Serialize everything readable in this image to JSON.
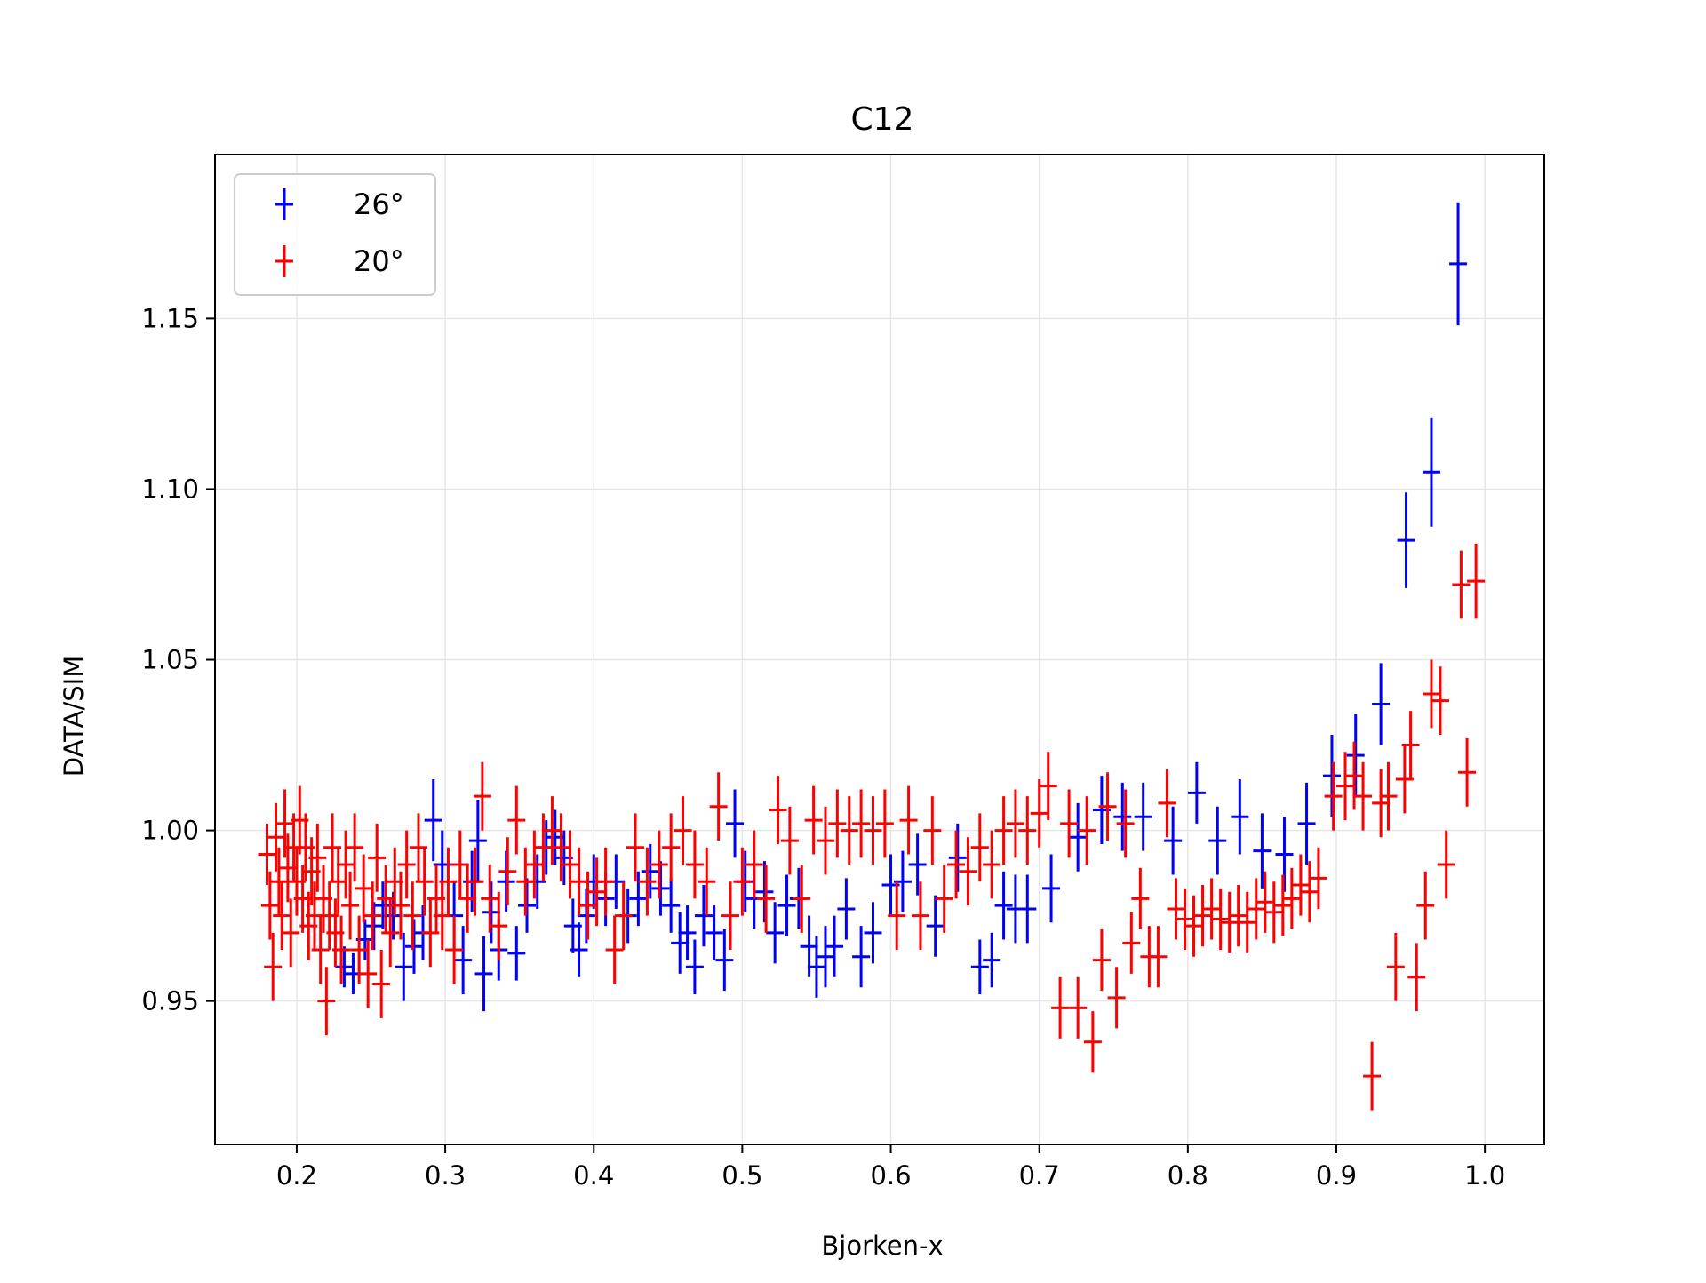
{
  "chart_data": {
    "type": "scatter",
    "title": "C12",
    "xlabel": "Bjorken-x",
    "ylabel": "DATA/SIM",
    "xlim": [
      0.145,
      1.04
    ],
    "ylim": [
      0.908,
      1.198
    ],
    "xticks": [
      0.2,
      0.3,
      0.4,
      0.5,
      0.6,
      0.7,
      0.8,
      0.9,
      1.0
    ],
    "xtick_labels": [
      "0.2",
      "0.3",
      "0.4",
      "0.5",
      "0.6",
      "0.7",
      "0.8",
      "0.9",
      "1.0"
    ],
    "yticks": [
      0.95,
      1.0,
      1.05,
      1.1,
      1.15
    ],
    "ytick_labels": [
      "0.95",
      "1.00",
      "1.05",
      "1.10",
      "1.15"
    ],
    "grid": true,
    "legend_position": "top-left",
    "series": [
      {
        "name": "26°",
        "color": "#0000ff",
        "points": [
          [
            0.232,
            0.96,
            0.006
          ],
          [
            0.238,
            0.958,
            0.006
          ],
          [
            0.246,
            0.968,
            0.006
          ],
          [
            0.252,
            0.972,
            0.007
          ],
          [
            0.258,
            0.978,
            0.007
          ],
          [
            0.265,
            0.975,
            0.007
          ],
          [
            0.272,
            0.96,
            0.01
          ],
          [
            0.279,
            0.966,
            0.008
          ],
          [
            0.285,
            0.97,
            0.008
          ],
          [
            0.292,
            1.003,
            0.012
          ],
          [
            0.298,
            0.99,
            0.01
          ],
          [
            0.306,
            0.975,
            0.01
          ],
          [
            0.312,
            0.962,
            0.01
          ],
          [
            0.318,
            0.985,
            0.009
          ],
          [
            0.322,
            0.997,
            0.012
          ],
          [
            0.326,
            0.958,
            0.011
          ],
          [
            0.331,
            0.976,
            0.009
          ],
          [
            0.336,
            0.965,
            0.009
          ],
          [
            0.341,
            0.985,
            0.009
          ],
          [
            0.348,
            0.964,
            0.008
          ],
          [
            0.355,
            0.978,
            0.008
          ],
          [
            0.362,
            0.985,
            0.008
          ],
          [
            0.368,
            0.995,
            0.008
          ],
          [
            0.374,
            0.998,
            0.008
          ],
          [
            0.38,
            0.992,
            0.008
          ],
          [
            0.386,
            0.972,
            0.008
          ],
          [
            0.39,
            0.965,
            0.008
          ],
          [
            0.395,
            0.975,
            0.008
          ],
          [
            0.4,
            0.985,
            0.008
          ],
          [
            0.408,
            0.98,
            0.008
          ],
          [
            0.415,
            0.985,
            0.008
          ],
          [
            0.423,
            0.975,
            0.008
          ],
          [
            0.43,
            0.98,
            0.008
          ],
          [
            0.438,
            0.988,
            0.008
          ],
          [
            0.445,
            0.983,
            0.008
          ],
          [
            0.452,
            0.978,
            0.008
          ],
          [
            0.458,
            0.967,
            0.009
          ],
          [
            0.463,
            0.97,
            0.008
          ],
          [
            0.468,
            0.96,
            0.008
          ],
          [
            0.474,
            0.975,
            0.009
          ],
          [
            0.481,
            0.97,
            0.008
          ],
          [
            0.488,
            0.962,
            0.009
          ],
          [
            0.495,
            1.002,
            0.01
          ],
          [
            0.502,
            0.985,
            0.009
          ],
          [
            0.508,
            0.98,
            0.009
          ],
          [
            0.515,
            0.982,
            0.009
          ],
          [
            0.522,
            0.97,
            0.009
          ],
          [
            0.53,
            0.978,
            0.009
          ],
          [
            0.538,
            0.98,
            0.009
          ],
          [
            0.545,
            0.966,
            0.009
          ],
          [
            0.55,
            0.96,
            0.009
          ],
          [
            0.556,
            0.963,
            0.009
          ],
          [
            0.562,
            0.966,
            0.009
          ],
          [
            0.57,
            0.977,
            0.009
          ],
          [
            0.58,
            0.963,
            0.009
          ],
          [
            0.588,
            0.97,
            0.009
          ],
          [
            0.6,
            0.984,
            0.009
          ],
          [
            0.608,
            0.985,
            0.009
          ],
          [
            0.618,
            0.99,
            0.009
          ],
          [
            0.63,
            0.972,
            0.009
          ],
          [
            0.645,
            0.992,
            0.01
          ],
          [
            0.66,
            0.96,
            0.008
          ],
          [
            0.668,
            0.962,
            0.008
          ],
          [
            0.676,
            0.978,
            0.01
          ],
          [
            0.684,
            0.977,
            0.01
          ],
          [
            0.692,
            0.977,
            0.01
          ],
          [
            0.708,
            0.983,
            0.01
          ],
          [
            0.726,
            0.998,
            0.01
          ],
          [
            0.742,
            1.006,
            0.01
          ],
          [
            0.756,
            1.004,
            0.01
          ],
          [
            0.77,
            1.004,
            0.01
          ],
          [
            0.79,
            0.997,
            0.01
          ],
          [
            0.806,
            1.011,
            0.009
          ],
          [
            0.82,
            0.997,
            0.01
          ],
          [
            0.835,
            1.004,
            0.011
          ],
          [
            0.85,
            0.994,
            0.011
          ],
          [
            0.865,
            0.993,
            0.011
          ],
          [
            0.88,
            1.002,
            0.012
          ],
          [
            0.897,
            1.016,
            0.012
          ],
          [
            0.913,
            1.022,
            0.012
          ],
          [
            0.93,
            1.037,
            0.012
          ],
          [
            0.947,
            1.085,
            0.014
          ],
          [
            0.964,
            1.105,
            0.016
          ],
          [
            0.982,
            1.166,
            0.018
          ]
        ]
      },
      {
        "name": "20°",
        "color": "#ff0000",
        "points": [
          [
            0.18,
            0.993,
            0.009
          ],
          [
            0.182,
            0.978,
            0.01
          ],
          [
            0.184,
            0.96,
            0.01
          ],
          [
            0.186,
            0.998,
            0.01
          ],
          [
            0.188,
            0.985,
            0.01
          ],
          [
            0.19,
            0.975,
            0.01
          ],
          [
            0.192,
            1.002,
            0.01
          ],
          [
            0.194,
            0.989,
            0.01
          ],
          [
            0.196,
            0.97,
            0.01
          ],
          [
            0.198,
            0.995,
            0.01
          ],
          [
            0.2,
            0.985,
            0.01
          ],
          [
            0.202,
            1.003,
            0.01
          ],
          [
            0.204,
            0.98,
            0.01
          ],
          [
            0.206,
            0.995,
            0.01
          ],
          [
            0.208,
            0.972,
            0.01
          ],
          [
            0.21,
            0.988,
            0.01
          ],
          [
            0.212,
            0.975,
            0.01
          ],
          [
            0.214,
            0.992,
            0.01
          ],
          [
            0.216,
            0.965,
            0.01
          ],
          [
            0.218,
            0.98,
            0.01
          ],
          [
            0.22,
            0.95,
            0.01
          ],
          [
            0.222,
            0.975,
            0.01
          ],
          [
            0.224,
            0.995,
            0.01
          ],
          [
            0.226,
            0.97,
            0.01
          ],
          [
            0.228,
            0.985,
            0.01
          ],
          [
            0.23,
            0.965,
            0.01
          ],
          [
            0.233,
            0.99,
            0.01
          ],
          [
            0.236,
            0.978,
            0.01
          ],
          [
            0.239,
            0.995,
            0.01
          ],
          [
            0.242,
            0.965,
            0.01
          ],
          [
            0.245,
            0.983,
            0.01
          ],
          [
            0.248,
            0.958,
            0.01
          ],
          [
            0.251,
            0.975,
            0.01
          ],
          [
            0.254,
            0.992,
            0.01
          ],
          [
            0.257,
            0.955,
            0.01
          ],
          [
            0.26,
            0.98,
            0.01
          ],
          [
            0.263,
            0.97,
            0.01
          ],
          [
            0.266,
            0.985,
            0.01
          ],
          [
            0.27,
            0.978,
            0.01
          ],
          [
            0.274,
            0.99,
            0.01
          ],
          [
            0.278,
            0.975,
            0.01
          ],
          [
            0.282,
            0.995,
            0.01
          ],
          [
            0.286,
            0.985,
            0.01
          ],
          [
            0.29,
            0.97,
            0.01
          ],
          [
            0.294,
            0.98,
            0.01
          ],
          [
            0.298,
            0.975,
            0.01
          ],
          [
            0.302,
            0.985,
            0.01
          ],
          [
            0.306,
            0.965,
            0.01
          ],
          [
            0.31,
            0.99,
            0.01
          ],
          [
            0.315,
            0.98,
            0.01
          ],
          [
            0.32,
            0.985,
            0.01
          ],
          [
            0.325,
            1.01,
            0.01
          ],
          [
            0.33,
            0.98,
            0.01
          ],
          [
            0.336,
            0.972,
            0.01
          ],
          [
            0.342,
            0.988,
            0.01
          ],
          [
            0.348,
            1.003,
            0.01
          ],
          [
            0.354,
            0.985,
            0.01
          ],
          [
            0.36,
            0.99,
            0.01
          ],
          [
            0.366,
            0.995,
            0.01
          ],
          [
            0.372,
            1.0,
            0.01
          ],
          [
            0.378,
            0.995,
            0.01
          ],
          [
            0.384,
            0.99,
            0.01
          ],
          [
            0.39,
            0.985,
            0.01
          ],
          [
            0.396,
            0.978,
            0.01
          ],
          [
            0.402,
            0.982,
            0.01
          ],
          [
            0.408,
            0.985,
            0.01
          ],
          [
            0.414,
            0.965,
            0.01
          ],
          [
            0.42,
            0.975,
            0.01
          ],
          [
            0.428,
            0.995,
            0.01
          ],
          [
            0.436,
            0.985,
            0.01
          ],
          [
            0.444,
            0.99,
            0.01
          ],
          [
            0.452,
            0.995,
            0.01
          ],
          [
            0.46,
            1.0,
            0.01
          ],
          [
            0.468,
            0.99,
            0.01
          ],
          [
            0.476,
            0.985,
            0.01
          ],
          [
            0.484,
            1.007,
            0.01
          ],
          [
            0.492,
            0.975,
            0.01
          ],
          [
            0.5,
            0.985,
            0.01
          ],
          [
            0.508,
            0.99,
            0.01
          ],
          [
            0.516,
            0.98,
            0.01
          ],
          [
            0.524,
            1.006,
            0.01
          ],
          [
            0.532,
            0.997,
            0.01
          ],
          [
            0.54,
            0.98,
            0.01
          ],
          [
            0.548,
            1.003,
            0.01
          ],
          [
            0.556,
            0.997,
            0.01
          ],
          [
            0.564,
            1.002,
            0.01
          ],
          [
            0.572,
            1.0,
            0.01
          ],
          [
            0.58,
            1.002,
            0.01
          ],
          [
            0.588,
            1.0,
            0.01
          ],
          [
            0.596,
            1.002,
            0.01
          ],
          [
            0.604,
            0.975,
            0.01
          ],
          [
            0.612,
            1.003,
            0.01
          ],
          [
            0.62,
            0.975,
            0.01
          ],
          [
            0.628,
            1.0,
            0.01
          ],
          [
            0.636,
            0.98,
            0.01
          ],
          [
            0.644,
            0.99,
            0.01
          ],
          [
            0.652,
            0.988,
            0.01
          ],
          [
            0.66,
            0.995,
            0.01
          ],
          [
            0.668,
            0.99,
            0.01
          ],
          [
            0.676,
            1.0,
            0.01
          ],
          [
            0.684,
            1.002,
            0.01
          ],
          [
            0.692,
            1.0,
            0.01
          ],
          [
            0.7,
            1.005,
            0.01
          ],
          [
            0.706,
            1.013,
            0.01
          ],
          [
            0.714,
            0.948,
            0.009
          ],
          [
            0.72,
            1.002,
            0.01
          ],
          [
            0.726,
            0.948,
            0.009
          ],
          [
            0.732,
            1.0,
            0.01
          ],
          [
            0.736,
            0.938,
            0.009
          ],
          [
            0.742,
            0.962,
            0.009
          ],
          [
            0.746,
            1.007,
            0.01
          ],
          [
            0.752,
            0.951,
            0.009
          ],
          [
            0.758,
            1.002,
            0.01
          ],
          [
            0.762,
            0.967,
            0.009
          ],
          [
            0.768,
            0.98,
            0.009
          ],
          [
            0.774,
            0.963,
            0.009
          ],
          [
            0.78,
            0.963,
            0.009
          ],
          [
            0.786,
            1.008,
            0.01
          ],
          [
            0.792,
            0.977,
            0.009
          ],
          [
            0.798,
            0.974,
            0.009
          ],
          [
            0.804,
            0.972,
            0.009
          ],
          [
            0.81,
            0.975,
            0.009
          ],
          [
            0.816,
            0.977,
            0.009
          ],
          [
            0.822,
            0.974,
            0.009
          ],
          [
            0.828,
            0.973,
            0.009
          ],
          [
            0.834,
            0.975,
            0.009
          ],
          [
            0.84,
            0.973,
            0.009
          ],
          [
            0.846,
            0.977,
            0.009
          ],
          [
            0.852,
            0.979,
            0.009
          ],
          [
            0.858,
            0.976,
            0.009
          ],
          [
            0.864,
            0.978,
            0.009
          ],
          [
            0.87,
            0.98,
            0.009
          ],
          [
            0.876,
            0.984,
            0.009
          ],
          [
            0.882,
            0.982,
            0.009
          ],
          [
            0.888,
            0.986,
            0.009
          ],
          [
            0.898,
            1.01,
            0.01
          ],
          [
            0.906,
            1.013,
            0.01
          ],
          [
            0.912,
            1.016,
            0.01
          ],
          [
            0.918,
            1.01,
            0.01
          ],
          [
            0.924,
            0.928,
            0.01
          ],
          [
            0.93,
            1.008,
            0.01
          ],
          [
            0.935,
            1.01,
            0.01
          ],
          [
            0.94,
            0.96,
            0.01
          ],
          [
            0.946,
            1.015,
            0.01
          ],
          [
            0.95,
            1.025,
            0.01
          ],
          [
            0.954,
            0.957,
            0.01
          ],
          [
            0.96,
            0.978,
            0.01
          ],
          [
            0.964,
            1.04,
            0.01
          ],
          [
            0.97,
            1.038,
            0.01
          ],
          [
            0.974,
            0.99,
            0.01
          ],
          [
            0.984,
            1.072,
            0.01
          ],
          [
            0.988,
            1.017,
            0.01
          ],
          [
            0.994,
            1.073,
            0.011
          ]
        ]
      }
    ]
  }
}
